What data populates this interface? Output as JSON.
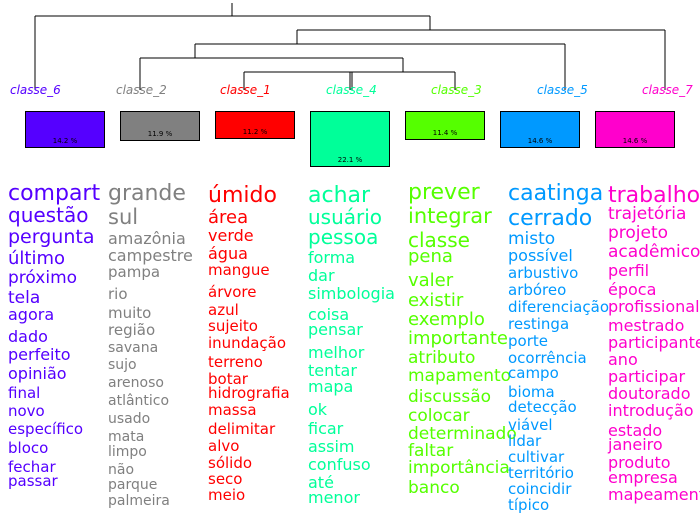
{
  "classes": [
    {
      "label": "classe_6",
      "color": "#5500ff",
      "pct": "14.2 %"
    },
    {
      "label": "classe_2",
      "color": "#808080",
      "pct": "11.9 %"
    },
    {
      "label": "classe_1",
      "color": "#ff0000",
      "pct": "11.2 %"
    },
    {
      "label": "classe_4",
      "color": "#00ff99",
      "pct": "22.1 %"
    },
    {
      "label": "classe_3",
      "color": "#55ff00",
      "pct": "11.4 %"
    },
    {
      "label": "classe_5",
      "color": "#0099ff",
      "pct": "14.6 %"
    },
    {
      "label": "classe_7",
      "color": "#ff00cc",
      "pct": "14.6 %"
    }
  ],
  "words": [
    [
      "compart",
      "questão",
      "pergunta",
      "último",
      "próximo",
      "tela",
      "agora",
      "dado",
      "perfeito",
      "opinião",
      "final",
      "novo",
      "específico",
      "bloco",
      "fechar",
      "passar"
    ],
    [
      "grande",
      "sul",
      "amazônia",
      "campestre",
      "pampa",
      "rio",
      "muito",
      "região",
      "savana",
      "sujo",
      "arenoso",
      "atlântico",
      "usado",
      "mata",
      "limpo",
      "não",
      "parque",
      "palmeira"
    ],
    [
      "úmido",
      "área",
      "verde",
      "água",
      "mangue",
      "árvore",
      "azul",
      "sujeito",
      "inundação",
      "terreno",
      "botar",
      "hidrografia",
      "massa",
      "delimitar",
      "alvo",
      "sólido",
      "seco",
      "meio"
    ],
    [
      "achar",
      "usuário",
      "pessoa",
      "forma",
      "dar",
      "simbologia",
      "coisa",
      "pensar",
      "melhor",
      "tentar",
      "mapa",
      "ok",
      "ficar",
      "assim",
      "confuso",
      "até",
      "menor"
    ],
    [
      "prever",
      "integrar",
      "classe",
      "pena",
      "valer",
      "existir",
      "exemplo",
      "importante",
      "atributo",
      "mapamento",
      "discussão",
      "colocar",
      "determinado",
      "faltar",
      "importância",
      "banco"
    ],
    [
      "caatinga",
      "cerrado",
      "misto",
      "possível",
      "arbustivo",
      "arbóreo",
      "diferenciação",
      "restinga",
      "porte",
      "ocorrência",
      "campo",
      "bioma",
      "detecção",
      "viável",
      "lidar",
      "cultivar",
      "território",
      "coincidir",
      "típico"
    ],
    [
      "trabalho",
      "trajetória",
      "projeto",
      "acadêmico",
      "perfil",
      "época",
      "profissional",
      "mestrado",
      "participante",
      "ano",
      "participar",
      "doutorado",
      "introdução",
      "estado",
      "janeiro",
      "produto",
      "empresa",
      "mapeamento"
    ]
  ]
}
